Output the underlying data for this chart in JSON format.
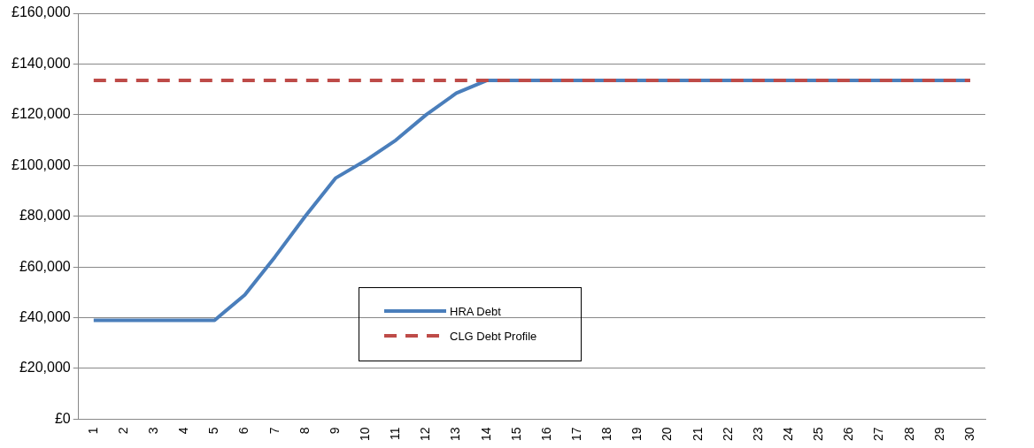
{
  "chart_data": {
    "type": "line",
    "categories": [
      "1",
      "2",
      "3",
      "4",
      "5",
      "6",
      "7",
      "8",
      "9",
      "10",
      "11",
      "12",
      "13",
      "14",
      "15",
      "16",
      "17",
      "18",
      "19",
      "20",
      "21",
      "22",
      "23",
      "24",
      "25",
      "26",
      "27",
      "28",
      "29",
      "30"
    ],
    "series": [
      {
        "name": "HRA Debt",
        "color": "#4a7ebb",
        "line_style": "solid",
        "values": [
          39000,
          39000,
          39000,
          39000,
          39000,
          49000,
          64000,
          80000,
          95000,
          102000,
          110000,
          120000,
          128500,
          133500,
          133500,
          133500,
          133500,
          133500,
          133500,
          133500,
          133500,
          133500,
          133500,
          133500,
          133500,
          133500,
          133500,
          133500,
          133500,
          133500
        ]
      },
      {
        "name": "CLG Debt Profile",
        "color": "#be4b48",
        "line_style": "dashed",
        "values": [
          133500,
          133500,
          133500,
          133500,
          133500,
          133500,
          133500,
          133500,
          133500,
          133500,
          133500,
          133500,
          133500,
          133500,
          133500,
          133500,
          133500,
          133500,
          133500,
          133500,
          133500,
          133500,
          133500,
          133500,
          133500,
          133500,
          133500,
          133500,
          133500,
          133500
        ]
      }
    ],
    "ylim": [
      0,
      160000
    ],
    "yticks": [
      {
        "value": 0,
        "label": "£0"
      },
      {
        "value": 20000,
        "label": "£20,000"
      },
      {
        "value": 40000,
        "label": "£40,000"
      },
      {
        "value": 60000,
        "label": "£60,000"
      },
      {
        "value": 80000,
        "label": "£80,000"
      },
      {
        "value": 100000,
        "label": "£100,000"
      },
      {
        "value": 120000,
        "label": "£120,000"
      },
      {
        "value": 140000,
        "label": "£140,000"
      },
      {
        "value": 160000,
        "label": "£160,000"
      }
    ],
    "grid": "y",
    "legend": "bottom",
    "marker": "none"
  }
}
